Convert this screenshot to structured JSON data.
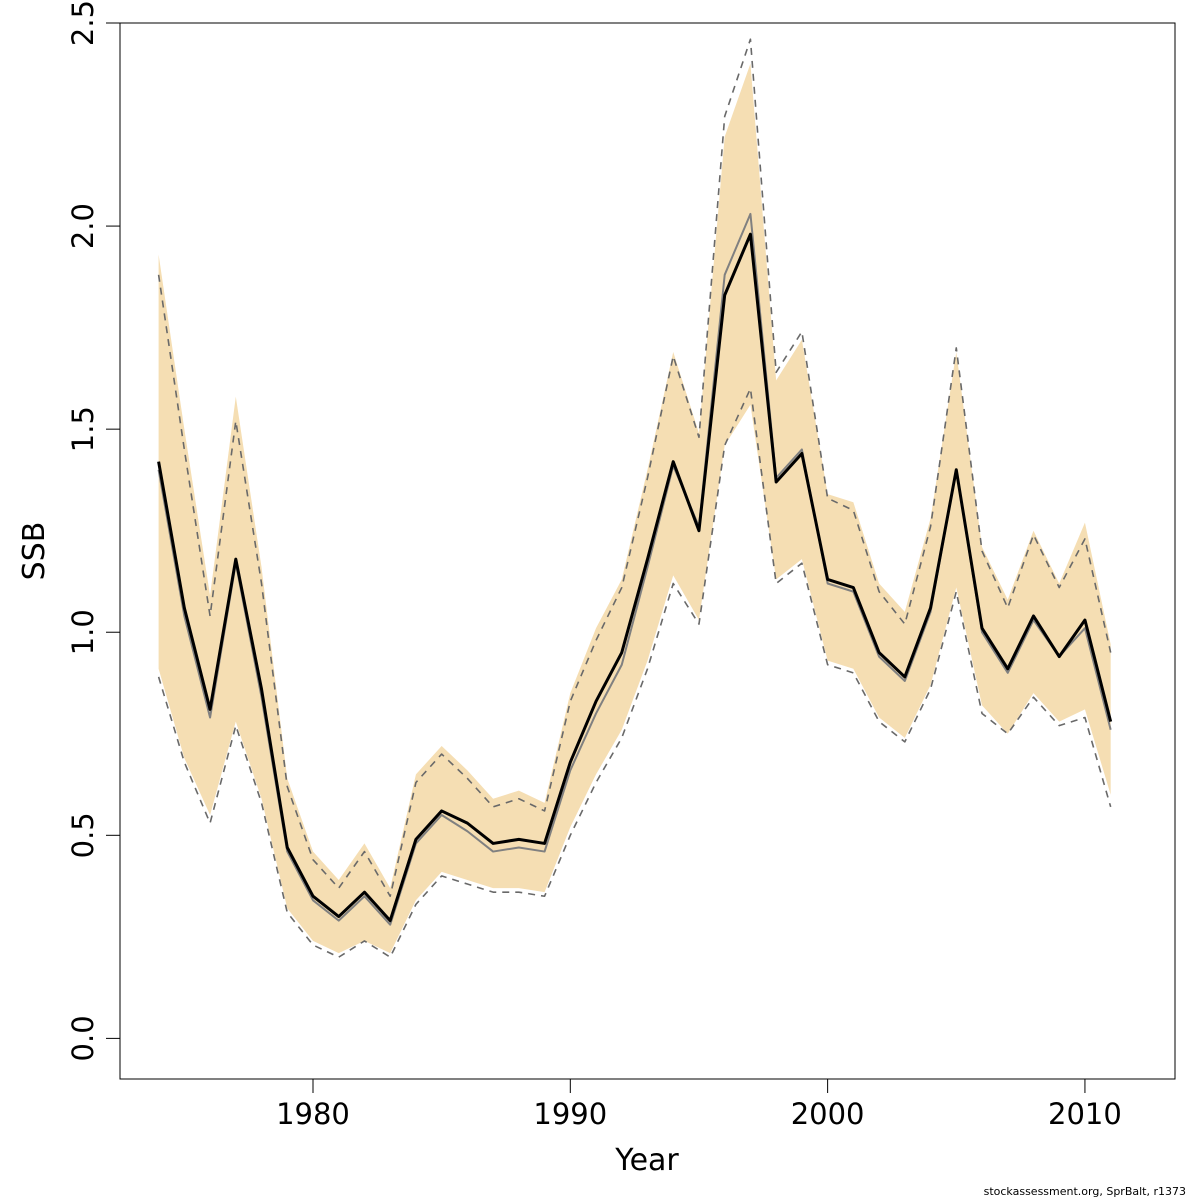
{
  "chart_data": {
    "type": "line",
    "title": "",
    "xlabel": "Year",
    "ylabel": "SSB",
    "xlim": [
      1972.5,
      2013.5
    ],
    "ylim": [
      -0.1,
      2.5
    ],
    "x_ticks": [
      1980,
      1990,
      2000,
      2010
    ],
    "x_tick_labels": [
      "1980",
      "1990",
      "2000",
      "2010"
    ],
    "y_ticks": [
      0.0,
      0.5,
      1.0,
      1.5,
      2.0,
      2.5
    ],
    "y_tick_labels": [
      "0.0",
      "0.5",
      "1.0",
      "1.5",
      "2.0",
      "2.5"
    ],
    "grid": false,
    "colors": {
      "band": "#f5deb3",
      "main_line": "#000000",
      "secondary_line": "#808080",
      "dashed_bounds": "#696969"
    },
    "x": [
      1974,
      1975,
      1976,
      1977,
      1978,
      1979,
      1980,
      1981,
      1982,
      1983,
      1984,
      1985,
      1986,
      1987,
      1988,
      1989,
      1990,
      1991,
      1992,
      1993,
      1994,
      1995,
      1996,
      1997,
      1998,
      1999,
      2000,
      2001,
      2002,
      2003,
      2004,
      2005,
      2006,
      2007,
      2008,
      2009,
      2010,
      2011
    ],
    "series": [
      {
        "role": "band_upper",
        "values": [
          1.93,
          1.5,
          1.09,
          1.58,
          1.16,
          0.64,
          0.46,
          0.39,
          0.48,
          0.37,
          0.65,
          0.72,
          0.66,
          0.59,
          0.61,
          0.58,
          0.85,
          1.01,
          1.13,
          1.4,
          1.69,
          1.49,
          2.22,
          2.4,
          1.62,
          1.72,
          1.34,
          1.32,
          1.12,
          1.05,
          1.28,
          1.69,
          1.21,
          1.08,
          1.25,
          1.12,
          1.27,
          0.97
        ]
      },
      {
        "role": "band_lower",
        "values": [
          0.91,
          0.69,
          0.55,
          0.78,
          0.59,
          0.32,
          0.24,
          0.21,
          0.24,
          0.21,
          0.34,
          0.41,
          0.39,
          0.37,
          0.37,
          0.36,
          0.52,
          0.65,
          0.76,
          0.93,
          1.14,
          1.03,
          1.46,
          1.56,
          1.13,
          1.18,
          0.93,
          0.91,
          0.79,
          0.74,
          0.87,
          1.11,
          0.82,
          0.75,
          0.85,
          0.78,
          0.81,
          0.6
        ]
      },
      {
        "role": "main",
        "values": [
          1.42,
          1.06,
          0.81,
          1.18,
          0.86,
          0.47,
          0.35,
          0.3,
          0.36,
          0.29,
          0.49,
          0.56,
          0.53,
          0.48,
          0.49,
          0.48,
          0.68,
          0.83,
          0.95,
          1.18,
          1.42,
          1.25,
          1.83,
          1.98,
          1.37,
          1.44,
          1.13,
          1.11,
          0.95,
          0.89,
          1.06,
          1.4,
          1.01,
          0.91,
          1.04,
          0.94,
          1.03,
          0.78
        ]
      },
      {
        "role": "secondary",
        "values": [
          1.4,
          1.04,
          0.79,
          1.17,
          0.84,
          0.46,
          0.34,
          0.29,
          0.35,
          0.28,
          0.48,
          0.55,
          0.51,
          0.46,
          0.47,
          0.46,
          0.66,
          0.8,
          0.92,
          1.16,
          1.41,
          1.26,
          1.88,
          2.03,
          1.38,
          1.45,
          1.12,
          1.1,
          0.94,
          0.88,
          1.05,
          1.4,
          1.0,
          0.9,
          1.03,
          0.94,
          1.01,
          0.76
        ]
      },
      {
        "role": "dashed_upper",
        "values": [
          1.88,
          1.45,
          1.04,
          1.52,
          1.12,
          0.62,
          0.44,
          0.37,
          0.46,
          0.35,
          0.63,
          0.7,
          0.64,
          0.57,
          0.59,
          0.56,
          0.83,
          0.98,
          1.11,
          1.38,
          1.68,
          1.48,
          2.27,
          2.46,
          1.64,
          1.74,
          1.33,
          1.3,
          1.1,
          1.02,
          1.26,
          1.7,
          1.2,
          1.06,
          1.24,
          1.11,
          1.23,
          0.95
        ]
      },
      {
        "role": "dashed_lower",
        "values": [
          0.89,
          0.68,
          0.53,
          0.77,
          0.58,
          0.31,
          0.23,
          0.2,
          0.24,
          0.2,
          0.33,
          0.4,
          0.38,
          0.36,
          0.36,
          0.35,
          0.5,
          0.63,
          0.74,
          0.91,
          1.12,
          1.02,
          1.46,
          1.6,
          1.12,
          1.17,
          0.92,
          0.9,
          0.78,
          0.73,
          0.86,
          1.1,
          0.8,
          0.75,
          0.84,
          0.77,
          0.79,
          0.57
        ]
      }
    ]
  },
  "footer": "stockassessment.org, SprBalt, r1373"
}
